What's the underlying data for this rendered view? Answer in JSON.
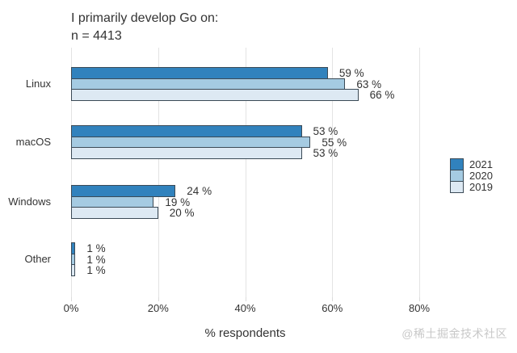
{
  "title": "I primarily develop Go on:",
  "subtitle": "n = 4413",
  "watermark": "@稀土掘金技术社区",
  "colors": {
    "series_2021": "#3182BD",
    "series_2020": "#A5CBE2",
    "series_2019": "#DDE9F3",
    "bar_border": "#3B4A56",
    "gridline": "#E3E3E3",
    "text": "#333333",
    "watermark": "#C8C8C8",
    "background": "#FFFFFF"
  },
  "chart_data": {
    "type": "bar",
    "orientation": "horizontal",
    "title": "I primarily develop Go on:",
    "subtitle": "n = 4413",
    "categories": [
      "Linux",
      "macOS",
      "Windows",
      "Other"
    ],
    "series": [
      {
        "name": "2021",
        "color": "#3182BD",
        "values": [
          59,
          53,
          24,
          1
        ],
        "labels": [
          "59 %",
          "53 %",
          "24 %",
          "1 %"
        ]
      },
      {
        "name": "2020",
        "color": "#A5CBE2",
        "values": [
          63,
          55,
          19,
          1
        ],
        "labels": [
          "63 %",
          "55 %",
          "19 %",
          "1 %"
        ]
      },
      {
        "name": "2019",
        "color": "#DDE9F3",
        "values": [
          66,
          53,
          20,
          1
        ],
        "labels": [
          "66 %",
          "53 %",
          "20 %",
          "1 %"
        ]
      }
    ],
    "xlabel": "% respondents",
    "ylabel": "",
    "xlim": [
      0,
      80
    ],
    "x_ticks": [
      "0%",
      "20%",
      "40%",
      "60%",
      "80%"
    ],
    "x_tick_values": [
      0,
      20,
      40,
      60,
      80
    ],
    "grid": "vertical-only",
    "legend_position": "right",
    "legend_entries": [
      "2021",
      "2020",
      "2019"
    ]
  }
}
